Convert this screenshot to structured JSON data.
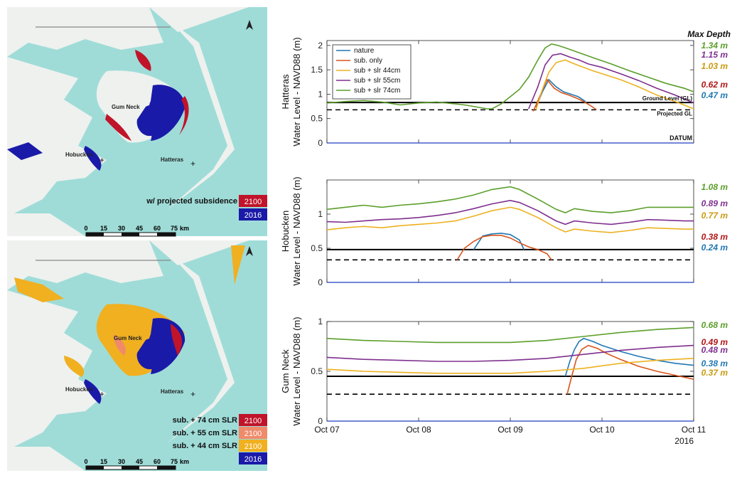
{
  "maps": [
    {
      "places": [
        "Gum Neck",
        "Hobucken",
        "Hatteras"
      ],
      "legend_title": "w/ projected subsidence",
      "legend": [
        {
          "label": "",
          "year": "2100",
          "color": "#c0142a"
        },
        {
          "label": "",
          "year": "2016",
          "color": "#1a1aa8"
        }
      ],
      "scale_ticks": [
        "0",
        "15",
        "30",
        "45",
        "60",
        "75"
      ],
      "scale_unit": "km"
    },
    {
      "places": [
        "Gum Neck",
        "Hobucken",
        "Hatteras"
      ],
      "legend_title": "",
      "legend": [
        {
          "label": "sub. + 74 cm SLR",
          "year": "2100",
          "color": "#c0142a"
        },
        {
          "label": "sub. + 55 cm SLR",
          "year": "2100",
          "color": "#f08a6a"
        },
        {
          "label": "sub. + 44 cm SLR",
          "year": "2100",
          "color": "#f0b020"
        },
        {
          "label": "",
          "year": "2016",
          "color": "#1a1aa8"
        }
      ],
      "scale_ticks": [
        "0",
        "15",
        "30",
        "45",
        "60",
        "75"
      ],
      "scale_unit": "km"
    }
  ],
  "max_depth_title": "Max Depth",
  "chart_data": [
    {
      "type": "line",
      "panel": "Hatteras",
      "ylabel": "Water Level - NAVD88 (m)",
      "ylim": [
        0,
        2.1
      ],
      "yticks": [
        0,
        0.5,
        1,
        1.5,
        2
      ],
      "xlim": [
        0,
        4
      ],
      "ground_level": 0.83,
      "projected_gl": 0.68,
      "annotations": [
        "Ground Level (GL)",
        "Projected GL",
        "DATUM"
      ],
      "legend_position": "top-left",
      "series": [
        {
          "name": "nature",
          "color": "#1f77b4",
          "x": [
            2.28,
            2.35,
            2.42,
            2.5,
            2.58,
            2.66,
            2.74,
            2.82
          ],
          "y": [
            0.73,
            1.05,
            1.3,
            1.15,
            1.05,
            1.0,
            0.95,
            0.85
          ]
        },
        {
          "name": "sub. only",
          "color": "#d95319",
          "x": [
            2.25,
            2.32,
            2.4,
            2.48,
            2.56,
            2.64,
            2.72,
            2.8,
            2.88,
            2.94
          ],
          "y": [
            0.65,
            0.95,
            1.3,
            1.12,
            1.03,
            0.98,
            0.92,
            0.85,
            0.76,
            0.68
          ]
        },
        {
          "name": "sub + slr 44cm",
          "color": "#edb120",
          "x": [
            2.28,
            2.35,
            2.42,
            2.5,
            2.6,
            2.7,
            2.8,
            2.9,
            3.0,
            3.2,
            3.4,
            3.6,
            3.8,
            4.0
          ],
          "y": [
            0.68,
            1.1,
            1.45,
            1.65,
            1.7,
            1.62,
            1.55,
            1.48,
            1.42,
            1.3,
            1.15,
            0.98,
            0.85,
            0.7
          ]
        },
        {
          "name": "sub + slr 55cm",
          "color": "#7e2f8e",
          "x": [
            2.2,
            2.3,
            2.38,
            2.46,
            2.55,
            2.65,
            2.75,
            2.85,
            3.0,
            3.2,
            3.4,
            3.6,
            3.8,
            4.0
          ],
          "y": [
            0.7,
            1.15,
            1.6,
            1.8,
            1.83,
            1.76,
            1.7,
            1.62,
            1.55,
            1.42,
            1.28,
            1.12,
            0.98,
            0.82
          ]
        },
        {
          "name": "sub + slr 74cm",
          "color": "#5b9e2a",
          "x": [
            0.0,
            0.2,
            0.4,
            0.6,
            0.8,
            1.0,
            1.2,
            1.4,
            1.5,
            1.75,
            1.8,
            1.9,
            2.0,
            2.1,
            2.2,
            2.3,
            2.38,
            2.45,
            2.52,
            2.6,
            2.75,
            2.9,
            3.1,
            3.3,
            3.5,
            3.7,
            3.9,
            4.0
          ],
          "y": [
            0.82,
            0.85,
            0.87,
            0.84,
            0.78,
            0.82,
            0.84,
            0.8,
            0.78,
            0.7,
            0.7,
            0.8,
            0.95,
            1.1,
            1.35,
            1.7,
            1.95,
            2.03,
            2.0,
            1.95,
            1.85,
            1.75,
            1.62,
            1.48,
            1.35,
            1.22,
            1.12,
            1.05
          ]
        }
      ],
      "max_depth": [
        {
          "value": "1.34 m",
          "color": "#5b9e2a"
        },
        {
          "value": "1.15 m",
          "color": "#7e2f8e"
        },
        {
          "value": "1.03 m",
          "color": "#c89a10"
        },
        {
          "value": "0.62 m",
          "color": "#b01515"
        },
        {
          "value": "0.47 m",
          "color": "#1f77b4"
        }
      ]
    },
    {
      "type": "line",
      "panel": "Hobucken",
      "ylabel": "Water Level - NAVD88 (m)",
      "ylim": [
        0,
        1.5
      ],
      "yticks": [
        0,
        0.5,
        1
      ],
      "xlim": [
        0,
        4
      ],
      "ground_level": 0.48,
      "projected_gl": 0.33,
      "series": [
        {
          "name": "nature",
          "color": "#1f77b4",
          "x": [
            1.6,
            1.7,
            1.8,
            1.9,
            2.0,
            2.1,
            2.15
          ],
          "y": [
            0.48,
            0.68,
            0.71,
            0.72,
            0.7,
            0.62,
            0.48
          ]
        },
        {
          "name": "sub. only",
          "color": "#d95319",
          "x": [
            1.42,
            1.5,
            1.6,
            1.7,
            1.8,
            1.9,
            2.0,
            2.1,
            2.2,
            2.3,
            2.4,
            2.45
          ],
          "y": [
            0.33,
            0.5,
            0.6,
            0.67,
            0.69,
            0.69,
            0.65,
            0.58,
            0.52,
            0.48,
            0.42,
            0.33
          ]
        },
        {
          "name": "sub + slr 44cm",
          "color": "#edb120",
          "x": [
            0.0,
            0.2,
            0.4,
            0.6,
            0.8,
            1.0,
            1.2,
            1.4,
            1.6,
            1.8,
            2.0,
            2.1,
            2.3,
            2.5,
            2.6,
            2.7,
            2.9,
            3.1,
            3.3,
            3.5,
            3.7,
            3.9,
            4.0
          ],
          "y": [
            0.77,
            0.8,
            0.82,
            0.8,
            0.83,
            0.85,
            0.87,
            0.9,
            0.97,
            1.05,
            1.1,
            1.07,
            0.95,
            0.8,
            0.74,
            0.78,
            0.75,
            0.73,
            0.76,
            0.8,
            0.79,
            0.78,
            0.78
          ]
        },
        {
          "name": "sub + slr 55cm",
          "color": "#7e2f8e",
          "x": [
            0.0,
            0.2,
            0.4,
            0.6,
            0.8,
            1.0,
            1.2,
            1.4,
            1.6,
            1.8,
            2.0,
            2.1,
            2.3,
            2.5,
            2.6,
            2.7,
            2.9,
            3.1,
            3.3,
            3.5,
            3.7,
            3.9,
            4.0
          ],
          "y": [
            0.89,
            0.88,
            0.9,
            0.92,
            0.93,
            0.95,
            0.98,
            1.02,
            1.08,
            1.15,
            1.2,
            1.17,
            1.05,
            0.9,
            0.85,
            0.9,
            0.87,
            0.85,
            0.88,
            0.92,
            0.91,
            0.9,
            0.9
          ]
        },
        {
          "name": "sub + slr 74cm",
          "color": "#5b9e2a",
          "x": [
            0.0,
            0.2,
            0.4,
            0.6,
            0.8,
            1.0,
            1.2,
            1.4,
            1.6,
            1.8,
            2.0,
            2.1,
            2.3,
            2.5,
            2.6,
            2.7,
            2.9,
            3.1,
            3.3,
            3.5,
            3.7,
            3.9,
            4.0
          ],
          "y": [
            1.07,
            1.1,
            1.13,
            1.1,
            1.13,
            1.15,
            1.18,
            1.22,
            1.28,
            1.36,
            1.4,
            1.36,
            1.22,
            1.07,
            1.02,
            1.08,
            1.04,
            1.02,
            1.05,
            1.1,
            1.1,
            1.1,
            1.1
          ]
        }
      ],
      "max_depth": [
        {
          "value": "1.08 m",
          "color": "#5b9e2a"
        },
        {
          "value": "0.89 m",
          "color": "#7e2f8e"
        },
        {
          "value": "0.77 m",
          "color": "#c89a10"
        },
        {
          "value": "0.38 m",
          "color": "#b01515"
        },
        {
          "value": "0.24 m",
          "color": "#1f77b4"
        }
      ]
    },
    {
      "type": "line",
      "panel": "Gum Neck",
      "ylabel": "Water Level - NAVD88 (m)",
      "ylim": [
        0,
        1
      ],
      "yticks": [
        0,
        0.5,
        1
      ],
      "xlim": [
        0,
        4
      ],
      "ground_level": 0.45,
      "projected_gl": 0.27,
      "xtick_labels": [
        "Oct 07",
        "Oct 08",
        "Oct 09",
        "Oct 10",
        "Oct 11"
      ],
      "xtick_values": [
        0,
        1,
        2,
        3,
        4
      ],
      "year_label": "2016",
      "series": [
        {
          "name": "nature",
          "color": "#1f77b4",
          "x": [
            2.6,
            2.65,
            2.7,
            2.75,
            2.8,
            2.9,
            3.0,
            3.2,
            3.4,
            3.6,
            3.8,
            4.0
          ],
          "y": [
            0.45,
            0.6,
            0.72,
            0.8,
            0.83,
            0.8,
            0.76,
            0.7,
            0.65,
            0.61,
            0.58,
            0.56
          ]
        },
        {
          "name": "sub. only",
          "color": "#d95319",
          "x": [
            2.62,
            2.67,
            2.72,
            2.78,
            2.85,
            2.95,
            3.05,
            3.2,
            3.4,
            3.6,
            3.8,
            4.0
          ],
          "y": [
            0.27,
            0.45,
            0.62,
            0.72,
            0.76,
            0.73,
            0.68,
            0.62,
            0.55,
            0.5,
            0.46,
            0.42
          ]
        },
        {
          "name": "sub + slr 44cm",
          "color": "#edb120",
          "x": [
            0.0,
            0.4,
            0.8,
            1.2,
            1.6,
            2.0,
            2.4,
            2.8,
            3.2,
            3.6,
            4.0
          ],
          "y": [
            0.52,
            0.5,
            0.49,
            0.48,
            0.48,
            0.48,
            0.5,
            0.53,
            0.58,
            0.61,
            0.63
          ]
        },
        {
          "name": "sub + slr 55cm",
          "color": "#7e2f8e",
          "x": [
            0.0,
            0.4,
            0.8,
            1.2,
            1.6,
            2.0,
            2.4,
            2.8,
            3.2,
            3.6,
            4.0
          ],
          "y": [
            0.64,
            0.62,
            0.61,
            0.6,
            0.6,
            0.61,
            0.63,
            0.67,
            0.71,
            0.74,
            0.76
          ]
        },
        {
          "name": "sub + slr 74cm",
          "color": "#5b9e2a",
          "x": [
            0.0,
            0.4,
            0.8,
            1.2,
            1.6,
            2.0,
            2.4,
            2.8,
            3.2,
            3.6,
            4.0
          ],
          "y": [
            0.83,
            0.81,
            0.8,
            0.79,
            0.79,
            0.79,
            0.81,
            0.85,
            0.89,
            0.92,
            0.94
          ]
        }
      ],
      "max_depth": [
        {
          "value": "0.68 m",
          "color": "#5b9e2a"
        },
        {
          "value": "0.49 m",
          "color": "#b01515"
        },
        {
          "value": "0.48 m",
          "color": "#7e2f8e"
        },
        {
          "value": "0.38 m",
          "color": "#1f77b4"
        },
        {
          "value": "0.37 m",
          "color": "#c89a10"
        }
      ]
    }
  ]
}
